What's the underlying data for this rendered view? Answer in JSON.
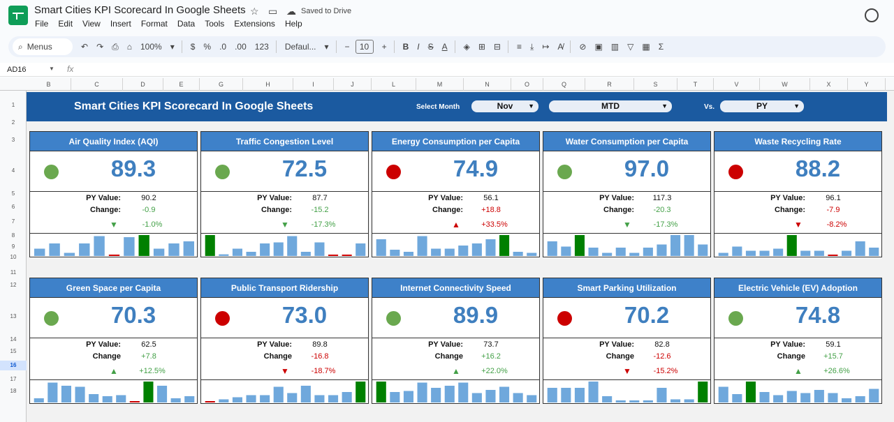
{
  "titlebar": {
    "doc_title": "Smart Cities KPI Scorecard In Google Sheets",
    "saved_status": "Saved to Drive"
  },
  "menu": [
    "File",
    "Edit",
    "View",
    "Insert",
    "Format",
    "Data",
    "Tools",
    "Extensions",
    "Help"
  ],
  "toolbar": {
    "menus_label": "Menus",
    "zoom": "100%",
    "currency": "$",
    "percent": "%",
    "dec_decrease": ".0",
    "dec_increase": ".00",
    "number_format": "123",
    "font": "Defaul...",
    "font_size": "10",
    "bold": "B",
    "sum_icon": "Σ"
  },
  "formula_bar": {
    "cell_ref": "AD16",
    "fx": "fx"
  },
  "columns": [
    "B",
    "C",
    "D",
    "E",
    "G",
    "H",
    "I",
    "J",
    "L",
    "M",
    "N",
    "O",
    "Q",
    "R",
    "S",
    "T",
    "V",
    "W",
    "X",
    "Y"
  ],
  "rows": [
    "1",
    "2",
    "3",
    "4",
    "5",
    "6",
    "7",
    "8",
    "9",
    "10",
    "11",
    "12",
    "13",
    "14",
    "15",
    "16",
    "17",
    "18"
  ],
  "selected_row": "16",
  "banner": {
    "title": "Smart Cities KPI Scorecard In Google Sheets",
    "select_month_label": "Select Month",
    "month": "Nov",
    "period": "MTD",
    "vs_label": "Vs.",
    "compare": "PY"
  },
  "labels": {
    "py_value": "PY Value:",
    "change_row1": "Change:",
    "change_row2": "Change"
  },
  "colors": {
    "good": "#43a047",
    "bad": "#cc0000",
    "dot_good": "#6aa84f",
    "dot_bad": "#cc0000",
    "bar": "#6fa8dc",
    "bar_highlight": "#008000",
    "bar_low": "#cc0000"
  },
  "kpis": [
    {
      "name": "Air Quality Index (AQI)",
      "value": "89.3",
      "status": "good",
      "py": "90.2",
      "change": "-0.9",
      "dir": "down",
      "pct": "-1.0%",
      "trend": "good",
      "spark": [
        0.35,
        0.6,
        0.15,
        0.6,
        0.95,
        0.02,
        0.9,
        1.0,
        0.35,
        0.6,
        0.7
      ],
      "spark_hi": 7
    },
    {
      "name": "Traffic Congestion Level",
      "value": "72.5",
      "status": "good",
      "py": "87.7",
      "change": "-15.2",
      "dir": "down",
      "pct": "-17.3%",
      "trend": "good",
      "spark": [
        1.0,
        0.08,
        0.35,
        0.2,
        0.6,
        0.65,
        0.95,
        0.2,
        0.65,
        0.02,
        0.02,
        0.6
      ],
      "spark_hi": 0
    },
    {
      "name": "Energy Consumption per Capita",
      "value": "74.9",
      "status": "bad",
      "py": "56.1",
      "change": "+18.8",
      "dir": "up",
      "pct": "+33.5%",
      "trend": "bad",
      "spark": [
        0.8,
        0.3,
        0.2,
        0.95,
        0.35,
        0.35,
        0.5,
        0.6,
        0.8,
        1.0,
        0.2,
        0.15
      ],
      "spark_hi": 9
    },
    {
      "name": "Water Consumption per Capita",
      "value": "97.0",
      "status": "good",
      "py": "117.3",
      "change": "-20.3",
      "dir": "down",
      "pct": "-17.3%",
      "trend": "good",
      "spark": [
        0.7,
        0.45,
        1.0,
        0.4,
        0.15,
        0.4,
        0.15,
        0.4,
        0.55,
        1.0,
        1.0,
        0.55
      ],
      "spark_hi": 2
    },
    {
      "name": "Waste Recycling Rate",
      "value": "88.2",
      "status": "bad",
      "py": "96.1",
      "change": "-7.9",
      "dir": "down",
      "pct": "-8.2%",
      "trend": "bad",
      "spark": [
        0.15,
        0.45,
        0.25,
        0.25,
        0.35,
        1.0,
        0.25,
        0.25,
        0.02,
        0.25,
        0.7,
        0.4
      ],
      "spark_hi": 5
    },
    {
      "name": "Green Space per Capita",
      "value": "70.3",
      "status": "good",
      "py": "62.5",
      "change": "+7.8",
      "dir": "up",
      "pct": "+12.5%",
      "trend": "good",
      "spark": [
        0.2,
        0.95,
        0.8,
        0.75,
        0.4,
        0.3,
        0.35,
        0.05,
        1.0,
        0.8,
        0.2,
        0.3
      ],
      "spark_hi": 8
    },
    {
      "name": "Public Transport Ridership",
      "value": "73.0",
      "status": "bad",
      "py": "89.8",
      "change": "-16.8",
      "dir": "down",
      "pct": "-18.7%",
      "trend": "bad",
      "spark": [
        0.03,
        0.15,
        0.25,
        0.35,
        0.35,
        0.75,
        0.45,
        0.8,
        0.35,
        0.35,
        0.5,
        1.0
      ],
      "spark_hi": 11
    },
    {
      "name": "Internet Connectivity Speed",
      "value": "89.9",
      "status": "good",
      "py": "73.7",
      "change": "+16.2",
      "dir": "up",
      "pct": "+22.0%",
      "trend": "good",
      "spark": [
        1.0,
        0.5,
        0.55,
        0.95,
        0.7,
        0.8,
        0.95,
        0.45,
        0.6,
        0.75,
        0.45,
        0.35
      ],
      "spark_hi": 0
    },
    {
      "name": "Smart Parking Utilization",
      "value": "70.2",
      "status": "bad",
      "py": "82.8",
      "change": "-12.6",
      "dir": "down",
      "pct": "-15.2%",
      "trend": "bad",
      "spark": [
        0.7,
        0.7,
        0.7,
        1.0,
        0.3,
        0.1,
        0.1,
        0.1,
        0.7,
        0.15,
        0.15,
        1.0
      ],
      "spark_hi": 11
    },
    {
      "name": "Electric Vehicle (EV) Adoption",
      "value": "74.8",
      "status": "good",
      "py": "59.1",
      "change": "+15.7",
      "dir": "up",
      "pct": "+26.6%",
      "trend": "good",
      "spark": [
        0.75,
        0.4,
        1.0,
        0.5,
        0.35,
        0.55,
        0.45,
        0.6,
        0.45,
        0.2,
        0.3,
        0.65
      ],
      "spark_hi": 2
    }
  ]
}
